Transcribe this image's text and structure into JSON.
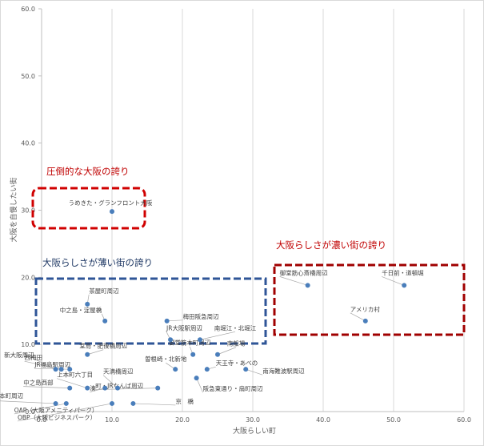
{
  "chart_data": {
    "type": "scatter",
    "xlabel": "大阪らしい町",
    "ylabel": "大阪を自慢したい街",
    "xlim": [
      0,
      60
    ],
    "ylim": [
      0,
      60
    ],
    "xticks": [
      "0.0",
      "10.0",
      "20.0",
      "30.0",
      "40.0",
      "50.0",
      "60.0"
    ],
    "yticks": [
      "0.0",
      "10.0",
      "20.0",
      "30.0",
      "40.0",
      "50.0",
      "60.0"
    ],
    "grid": "vertical",
    "legend": "none",
    "marker_color": "#4a7ebb",
    "points": [
      {
        "label": "うめきた・グランフロント大阪",
        "x": 10.0,
        "y": 29.8
      },
      {
        "label": "茶屋町周辺",
        "x": 6.5,
        "y": 16.0
      },
      {
        "label": "中之島・淀屋橋",
        "x": 9.0,
        "y": 13.5
      },
      {
        "label": "梅田阪急周辺",
        "x": 17.8,
        "y": 13.5
      },
      {
        "label": "JR大阪駅周辺",
        "x": 18.3,
        "y": 10.7
      },
      {
        "label": "南堀江・北堀江",
        "x": 22.5,
        "y": 10.7
      },
      {
        "label": "御堂筋本町周辺",
        "x": 21.5,
        "y": 8.5
      },
      {
        "label": "南船場",
        "x": 25.0,
        "y": 8.5
      },
      {
        "label": "堂島・肥後橋周辺",
        "x": 6.5,
        "y": 8.5
      },
      {
        "label": "曽根崎・北新地",
        "x": 19.0,
        "y": 6.3
      },
      {
        "label": "天王寺・あべの",
        "x": 23.5,
        "y": 6.3
      },
      {
        "label": "南海難波駅周辺",
        "x": 29.0,
        "y": 6.3
      },
      {
        "label": "新大阪周辺",
        "x": 2.0,
        "y": 6.3
      },
      {
        "label": "西梅田",
        "x": 2.8,
        "y": 6.3
      },
      {
        "label": "JR福島駅周辺",
        "x": 4.0,
        "y": 6.3
      },
      {
        "label": "天満橋周辺",
        "x": 10.8,
        "y": 3.5
      },
      {
        "label": "上本町六丁目",
        "x": 6.5,
        "y": 3.5
      },
      {
        "label": "湊",
        "x": 9.0,
        "y": 3.5
      },
      {
        "label": "町・JRなんば周辺",
        "x": 16.5,
        "y": 3.5
      },
      {
        "label": "中之島西部",
        "x": 4.0,
        "y": 3.5
      },
      {
        "label": "阪急東通り・扇町周辺",
        "x": 22.0,
        "y": 5.0
      },
      {
        "label": "西長堀・西本町周辺",
        "x": 2.0,
        "y": 1.2
      },
      {
        "label": "京　橋",
        "x": 13.0,
        "y": 1.2
      },
      {
        "label": "OAP（大阪アメニティパーク）",
        "x": 3.5,
        "y": 1.2
      },
      {
        "label": "OBP（大阪ビジネスパーク）",
        "x": 10.0,
        "y": 1.2
      },
      {
        "label": "御堂筋心斎橋周辺",
        "x": 37.8,
        "y": 18.8
      },
      {
        "label": "千日前・道頓堀",
        "x": 51.5,
        "y": 18.8
      },
      {
        "label": "アメリカ村",
        "x": 46.0,
        "y": 13.5
      }
    ],
    "annotations": [
      {
        "text": "圧倒的な大阪の誇り",
        "color": "#c00000"
      },
      {
        "text": "大阪らしさが薄い街の誇り",
        "color": "#1f3864"
      },
      {
        "text": "大阪らしさが濃い街の誇り",
        "color": "#c00000"
      }
    ]
  }
}
